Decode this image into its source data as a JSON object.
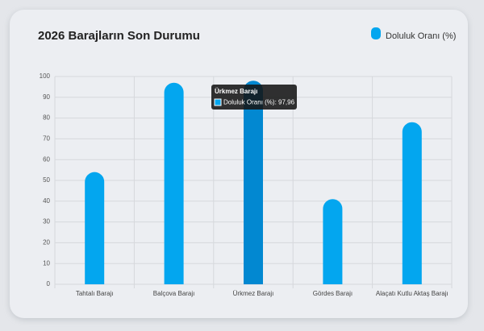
{
  "chart_data": {
    "type": "bar",
    "title": "2026 Barajların Son Durumu",
    "categories": [
      "Tahtalı Barajı",
      "Balçova Barajı",
      "Ürkmez Barajı",
      "Gördes Barajı",
      "Alaçatı Kutlu Aktaş Barajı"
    ],
    "series": [
      {
        "name": "Doluluk Oranı (%)",
        "color": "#03a6ef",
        "values": [
          54,
          97,
          97.96,
          41,
          78
        ]
      }
    ],
    "ylim": [
      0,
      100
    ],
    "yticks": [
      0,
      10,
      20,
      30,
      40,
      50,
      60,
      70,
      80,
      90,
      100
    ],
    "grid": true,
    "legend": "top-right",
    "tooltip": {
      "title": "Ürkmez Barajı",
      "label": "Doluluk Oranı (%): 97,96"
    }
  }
}
